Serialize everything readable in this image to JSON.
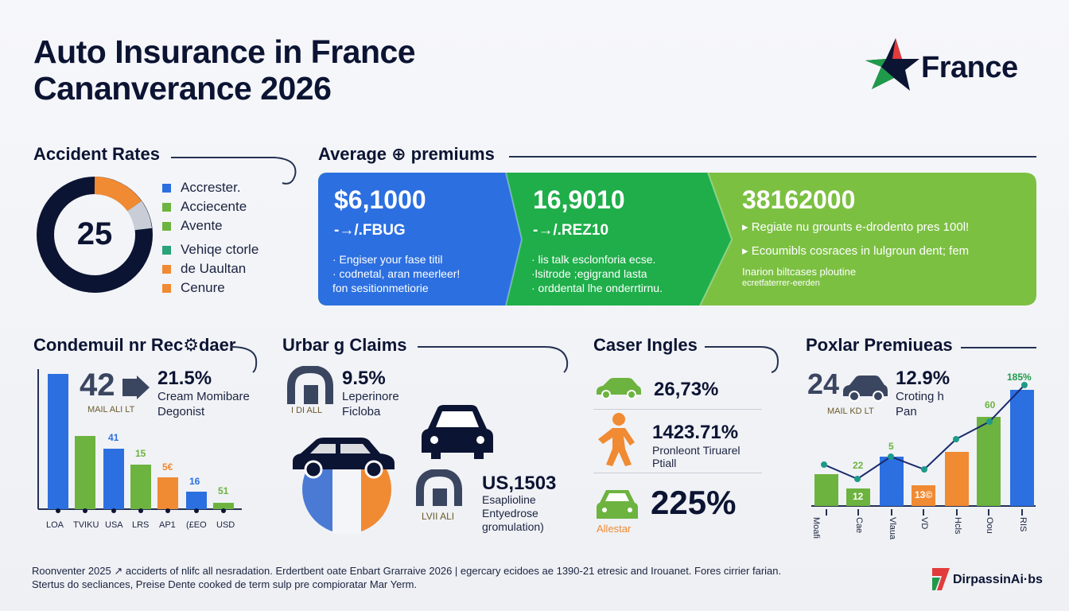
{
  "header": {
    "title_line1": "Auto Insurance in France",
    "title_line2": "Cananverance 2026",
    "brand": "France"
  },
  "accident_rates": {
    "title": "Accident Rates",
    "center_value": "25",
    "legend": [
      {
        "label": "Accrester.",
        "color": "#2c6fe0"
      },
      {
        "label": "Acciecente",
        "color": "#6db33f"
      },
      {
        "label": "Avente",
        "color": "#6db33f"
      },
      {
        "label": "Vehiqe ctorle",
        "color": "#2aa27a"
      },
      {
        "label": "de Uaultan",
        "color": "#f08a33"
      },
      {
        "label": "Cenure",
        "color": "#f08a33"
      }
    ]
  },
  "premiums": {
    "title": "Average ⊕ premiums",
    "panels": [
      {
        "big": "$6,1000",
        "sub": "-→/.FBUG",
        "lines": [
          "· Engiser your fase titil",
          "· codnetal, aran meerleer!",
          "  fon sesitionmetiorie"
        ]
      },
      {
        "big": "16,9010",
        "sub": "-→/.REZ10",
        "lines": [
          "· lis talk esclonforia ecse.",
          "·lsitrode ;egigrand lasta",
          "· orddental lhe onderrtirnu."
        ]
      },
      {
        "big": "38162000",
        "lines": [
          "▸ Regiate nu grounts e-drodento pres 100l!",
          "▸ Ecoumibls cosraces  in  lulgroun dent; fem",
          "  Inarion biltcases ploutine",
          "  ecretfaterrer-eerden"
        ]
      }
    ]
  },
  "condemuil": {
    "title": "Condemuil nr Rec⚙daer",
    "icon_value": "42",
    "stat": "21.5%",
    "desc_line1": "Cream Momibare",
    "desc_line2": "Degonist",
    "tag": "MAIL ALI LT",
    "bar_labels": [
      "41",
      "15",
      "5€",
      "16",
      "51"
    ],
    "x_ticks": [
      "LOA",
      "TVIKU",
      "USA",
      "LRS",
      "AP1",
      "(£EO",
      "USD"
    ]
  },
  "urban": {
    "title": "Urbar g Claims",
    "stat1": "9.5%",
    "desc1_line1": "Leperinore",
    "desc1_line2": "Ficloba",
    "tag1": "I DI ALL",
    "stat2": "US,1503",
    "desc2_line1": "Esaplioline",
    "desc2_line2": "Entyedrose",
    "desc2_line3": "gromulation)",
    "tag2": "LVII ALI"
  },
  "caser": {
    "title": "Caser Ingles",
    "rows": [
      {
        "value": "26,73%",
        "icon": "car-icon"
      },
      {
        "value": "1423.71%",
        "desc1": "Pronleont Tiruarel",
        "desc2": "Ptiall",
        "icon": "person-icon"
      },
      {
        "value": "225%",
        "tag": "Allestar",
        "icon": "car-front-icon"
      }
    ]
  },
  "poxlar": {
    "title": "Poxlar Premiueas",
    "icon_value": "24",
    "stat": "12.9%",
    "desc_line1": "Croting h",
    "desc_line2": "Pan",
    "tag": "MAIL KD LT",
    "bar_labels": [
      "22",
      "12",
      "5",
      "13©",
      "60",
      "185%"
    ],
    "x_ticks": [
      "Moafi",
      "Cae",
      "Vlaua",
      "VD",
      "Hcls",
      "Oou",
      "RIS"
    ]
  },
  "footer": {
    "line1": "Roonventer 2025 ↗ acciderts of nlifc all nesradation. Erdertbent oate Enbart Grarraive 2026 | egercary ecidoes ae 1390-21 etresic and Irouanet. Fores cirrier farian.",
    "line2": "Stertus do secliances, Preise Dente cooked de term sulp pre compioratar Mar Yerm.",
    "brand": "DirpassinAi·bs"
  },
  "colors": {
    "blue": "#2c6fe0",
    "green": "#6db33f",
    "orange": "#f08a33",
    "navy": "#0c1433",
    "teal": "#1f9a8a"
  }
}
